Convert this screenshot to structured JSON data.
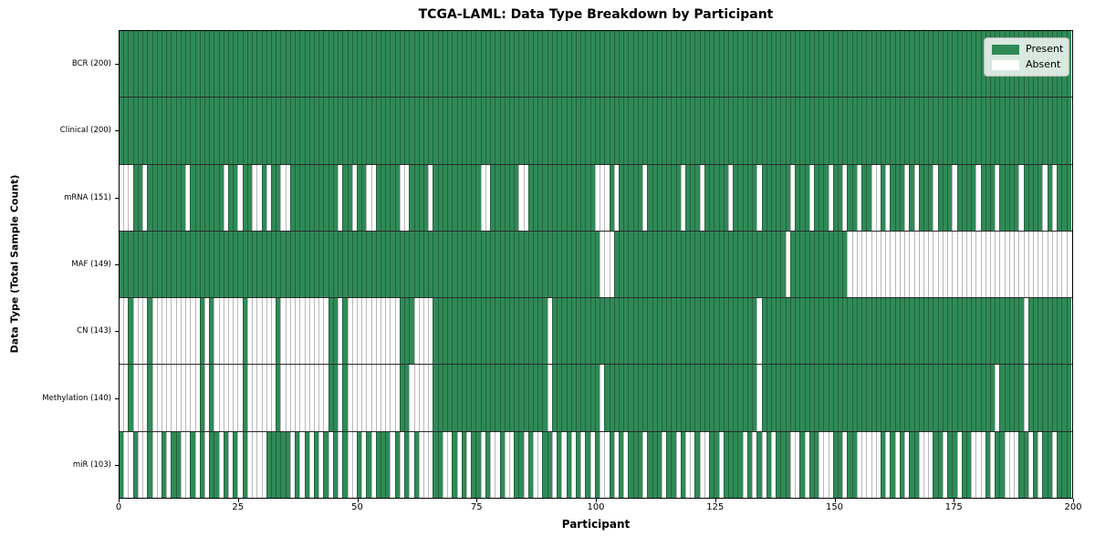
{
  "chart_data": {
    "type": "heatmap",
    "title": "TCGA-LAML: Data Type Breakdown by Participant",
    "xlabel": "Participant",
    "ylabel": "Data Type (Total Sample Count)",
    "x_ticks": [
      0,
      25,
      50,
      75,
      100,
      125,
      150,
      175,
      200
    ],
    "n_participants": 200,
    "x_range": [
      0,
      200
    ],
    "grid": true,
    "legend_position": "upper right",
    "colors": {
      "present": "#2F8A57",
      "absent": "#FFFFFF"
    },
    "legend": [
      {
        "label": "Present",
        "key": "present",
        "color": "#2F8A57"
      },
      {
        "label": "Absent",
        "key": "absent",
        "color": "#FFFFFF"
      }
    ],
    "rows": [
      {
        "name": "BCR",
        "label": "BCR (200)",
        "present_count": 200,
        "absent": []
      },
      {
        "name": "Clinical",
        "label": "Clinical (200)",
        "present_count": 200,
        "absent": []
      },
      {
        "name": "mRNA",
        "label": "mRNA (151)",
        "present_count": 151,
        "absent": [
          0,
          1,
          2,
          5,
          14,
          22,
          25,
          28,
          29,
          31,
          34,
          35,
          46,
          49,
          52,
          53,
          59,
          60,
          65,
          76,
          77,
          84,
          85,
          100,
          101,
          102,
          104,
          110,
          118,
          122,
          128,
          134,
          141,
          145,
          149,
          152,
          155,
          158,
          159,
          161,
          165,
          167,
          171,
          175,
          180,
          184,
          189,
          194,
          196
        ]
      },
      {
        "name": "MAF",
        "label": "MAF (149)",
        "present_count": 149,
        "absent": [
          101,
          102,
          103,
          140,
          153,
          154,
          155,
          156,
          157,
          158,
          159,
          160,
          161,
          162,
          163,
          164,
          165,
          166,
          167,
          168,
          169,
          170,
          171,
          172,
          173,
          174,
          175,
          176,
          177,
          178,
          179,
          180,
          181,
          182,
          183,
          184,
          185,
          186,
          187,
          188,
          189,
          190,
          191,
          192,
          193,
          194,
          195,
          196,
          197,
          198,
          199
        ]
      },
      {
        "name": "CN",
        "label": "CN (143)",
        "present_count": 143,
        "absent": [
          0,
          1,
          3,
          4,
          5,
          7,
          8,
          9,
          10,
          11,
          12,
          13,
          14,
          15,
          16,
          18,
          20,
          21,
          22,
          23,
          24,
          25,
          27,
          28,
          29,
          30,
          31,
          32,
          34,
          35,
          36,
          37,
          38,
          39,
          40,
          41,
          42,
          43,
          46,
          48,
          49,
          50,
          51,
          52,
          53,
          54,
          55,
          56,
          57,
          58,
          62,
          63,
          64,
          65,
          90,
          134,
          190
        ]
      },
      {
        "name": "Methylation",
        "label": "Methylation (140)",
        "present_count": 140,
        "absent": [
          0,
          1,
          3,
          4,
          5,
          7,
          8,
          9,
          10,
          11,
          12,
          13,
          14,
          15,
          16,
          18,
          20,
          21,
          22,
          23,
          24,
          25,
          27,
          28,
          29,
          30,
          31,
          32,
          34,
          35,
          36,
          37,
          38,
          39,
          40,
          41,
          42,
          43,
          46,
          48,
          49,
          50,
          51,
          52,
          53,
          54,
          55,
          56,
          57,
          58,
          61,
          62,
          63,
          64,
          65,
          90,
          101,
          134,
          184,
          190
        ]
      },
      {
        "name": "miR",
        "label": "miR (103)",
        "present_count": 103,
        "absent": [
          1,
          2,
          4,
          5,
          7,
          8,
          10,
          13,
          14,
          16,
          18,
          21,
          23,
          25,
          27,
          28,
          29,
          30,
          36,
          38,
          40,
          42,
          44,
          46,
          48,
          49,
          51,
          53,
          57,
          59,
          61,
          63,
          64,
          65,
          68,
          69,
          71,
          73,
          76,
          78,
          79,
          81,
          82,
          85,
          87,
          88,
          91,
          93,
          95,
          97,
          99,
          101,
          102,
          104,
          106,
          110,
          114,
          117,
          119,
          120,
          122,
          123,
          126,
          131,
          133,
          135,
          137,
          141,
          142,
          144,
          147,
          148,
          149,
          152,
          155,
          156,
          157,
          158,
          159,
          161,
          163,
          165,
          168,
          169,
          170,
          173,
          176,
          179,
          180,
          181,
          183,
          186,
          187,
          188,
          191,
          193,
          196
        ]
      }
    ]
  }
}
